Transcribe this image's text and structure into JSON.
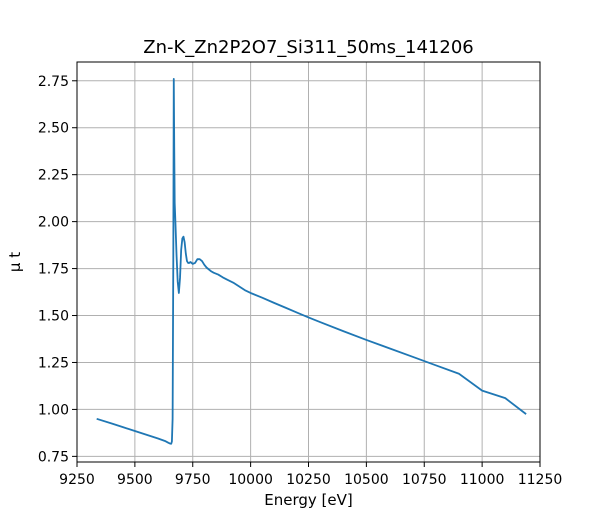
{
  "chart_data": {
    "type": "line",
    "title": "Zn-K_Zn2P2O7_Si311_50ms_141206",
    "xlabel": "Energy [eV]",
    "ylabel": "μ t",
    "xlim": [
      9250,
      11250
    ],
    "ylim": [
      0.72,
      2.85
    ],
    "xticks": [
      9250,
      9500,
      9750,
      10000,
      10250,
      10500,
      10750,
      11000,
      11250
    ],
    "yticks": [
      0.75,
      1.0,
      1.25,
      1.5,
      1.75,
      2.0,
      2.25,
      2.5,
      2.75
    ],
    "grid": true,
    "series": [
      {
        "color": "#1f77b4",
        "x": [
          9335,
          9400,
          9450,
          9500,
          9550,
          9600,
          9630,
          9645,
          9652,
          9657,
          9660,
          9663,
          9666,
          9668,
          9670,
          9672,
          9675,
          9680,
          9685,
          9690,
          9695,
          9700,
          9705,
          9710,
          9715,
          9720,
          9725,
          9730,
          9735,
          9740,
          9750,
          9760,
          9770,
          9780,
          9790,
          9800,
          9810,
          9820,
          9830,
          9840,
          9860,
          9880,
          9900,
          9925,
          9950,
          9975,
          10000,
          10050,
          10100,
          10150,
          10200,
          10250,
          10300,
          10400,
          10500,
          10600,
          10700,
          10800,
          10900,
          11000,
          11100,
          11190
        ],
        "y": [
          0.95,
          0.925,
          0.905,
          0.885,
          0.865,
          0.845,
          0.832,
          0.822,
          0.818,
          0.817,
          0.83,
          0.95,
          1.8,
          2.76,
          2.4,
          2.1,
          2.0,
          1.82,
          1.68,
          1.62,
          1.7,
          1.85,
          1.91,
          1.92,
          1.89,
          1.83,
          1.79,
          1.78,
          1.78,
          1.785,
          1.775,
          1.78,
          1.8,
          1.8,
          1.79,
          1.77,
          1.755,
          1.745,
          1.735,
          1.728,
          1.718,
          1.703,
          1.69,
          1.675,
          1.655,
          1.635,
          1.62,
          1.595,
          1.568,
          1.542,
          1.516,
          1.49,
          1.465,
          1.417,
          1.37,
          1.325,
          1.28,
          1.235,
          1.19,
          1.1,
          1.06,
          0.975
        ]
      }
    ]
  }
}
